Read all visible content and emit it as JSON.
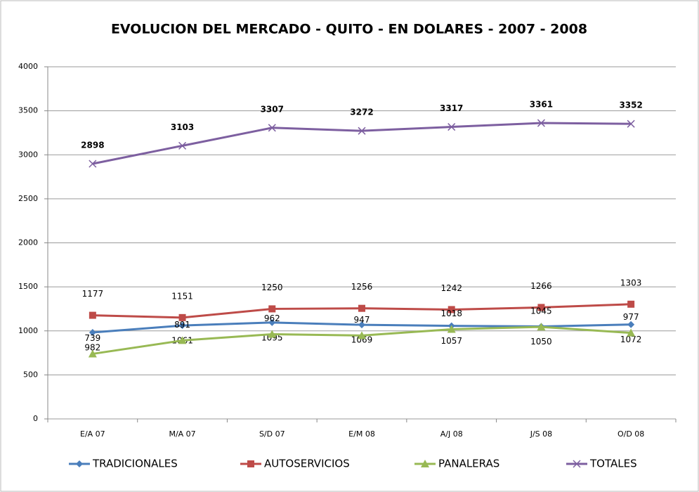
{
  "chart_data": {
    "type": "line",
    "title": "EVOLUCION DEL MERCADO - QUITO - EN DOLARES - 2007 - 2008",
    "categories": [
      "E/A 07",
      "M/A 07",
      "S/D 07",
      "E/M 08",
      "A/J 08",
      "J/S 08",
      "O/D 08"
    ],
    "series": [
      {
        "name": "TRADICIONALES",
        "color": "#4a7ebb",
        "marker": "diamond",
        "values": [
          982,
          1061,
          1095,
          1069,
          1057,
          1050,
          1072
        ]
      },
      {
        "name": "AUTOSERVICIOS",
        "color": "#be4b48",
        "marker": "square",
        "values": [
          1177,
          1151,
          1250,
          1256,
          1242,
          1266,
          1303
        ]
      },
      {
        "name": "PANALERAS",
        "color": "#98b954",
        "marker": "triangle",
        "values": [
          739,
          891,
          962,
          947,
          1018,
          1045,
          977
        ]
      },
      {
        "name": "TOTALES",
        "color": "#7d5fa0",
        "marker": "x",
        "values": [
          2898,
          3103,
          3307,
          3272,
          3317,
          3361,
          3352
        ]
      }
    ],
    "ylim": [
      0,
      4000
    ],
    "yticks": [
      0,
      500,
      1000,
      1500,
      2000,
      2500,
      3000,
      3500,
      4000
    ],
    "grid": true,
    "legend": "bottom"
  }
}
